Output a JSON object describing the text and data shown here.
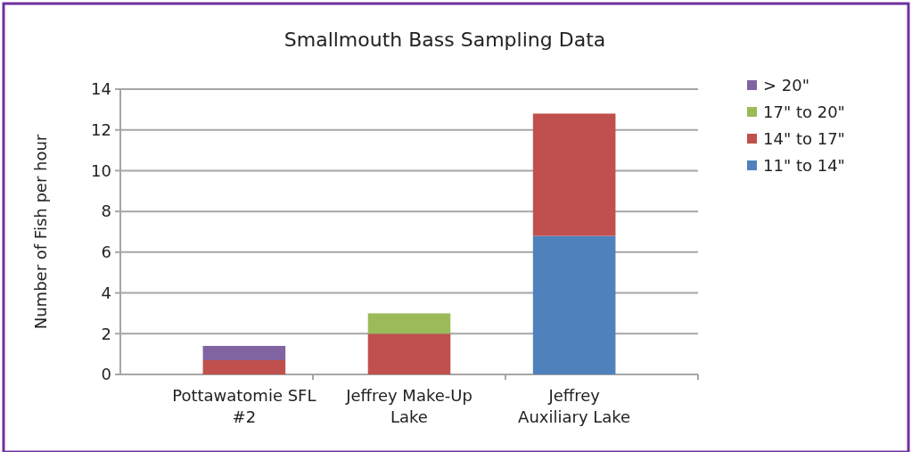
{
  "chart_data": {
    "type": "bar",
    "title": "Smallmouth Bass Sampling Data",
    "ylabel": "Number of Fish per hour",
    "categories": [
      "Pottawatomie SFL #2",
      "Jeffrey Make-Up Lake",
      "Jeffrey Auxiliary Lake"
    ],
    "stacked": true,
    "ylim": [
      0,
      14
    ],
    "yticks": [
      0,
      2,
      4,
      6,
      8,
      10,
      12,
      14
    ],
    "grid": "y",
    "legend": "right",
    "series": [
      {
        "name": "11\" to 14\"",
        "color": "#4f81bd",
        "values": [
          0,
          0,
          6.8
        ]
      },
      {
        "name": "14\" to 17\"",
        "color": "#c0504d",
        "values": [
          0.7,
          2,
          6
        ]
      },
      {
        "name": "17\" to 20\"",
        "color": "#9bbb59",
        "values": [
          0,
          1,
          0
        ]
      },
      {
        "name": "> 20\"",
        "color": "#8064a2",
        "values": [
          0.7,
          0,
          0
        ]
      }
    ]
  }
}
